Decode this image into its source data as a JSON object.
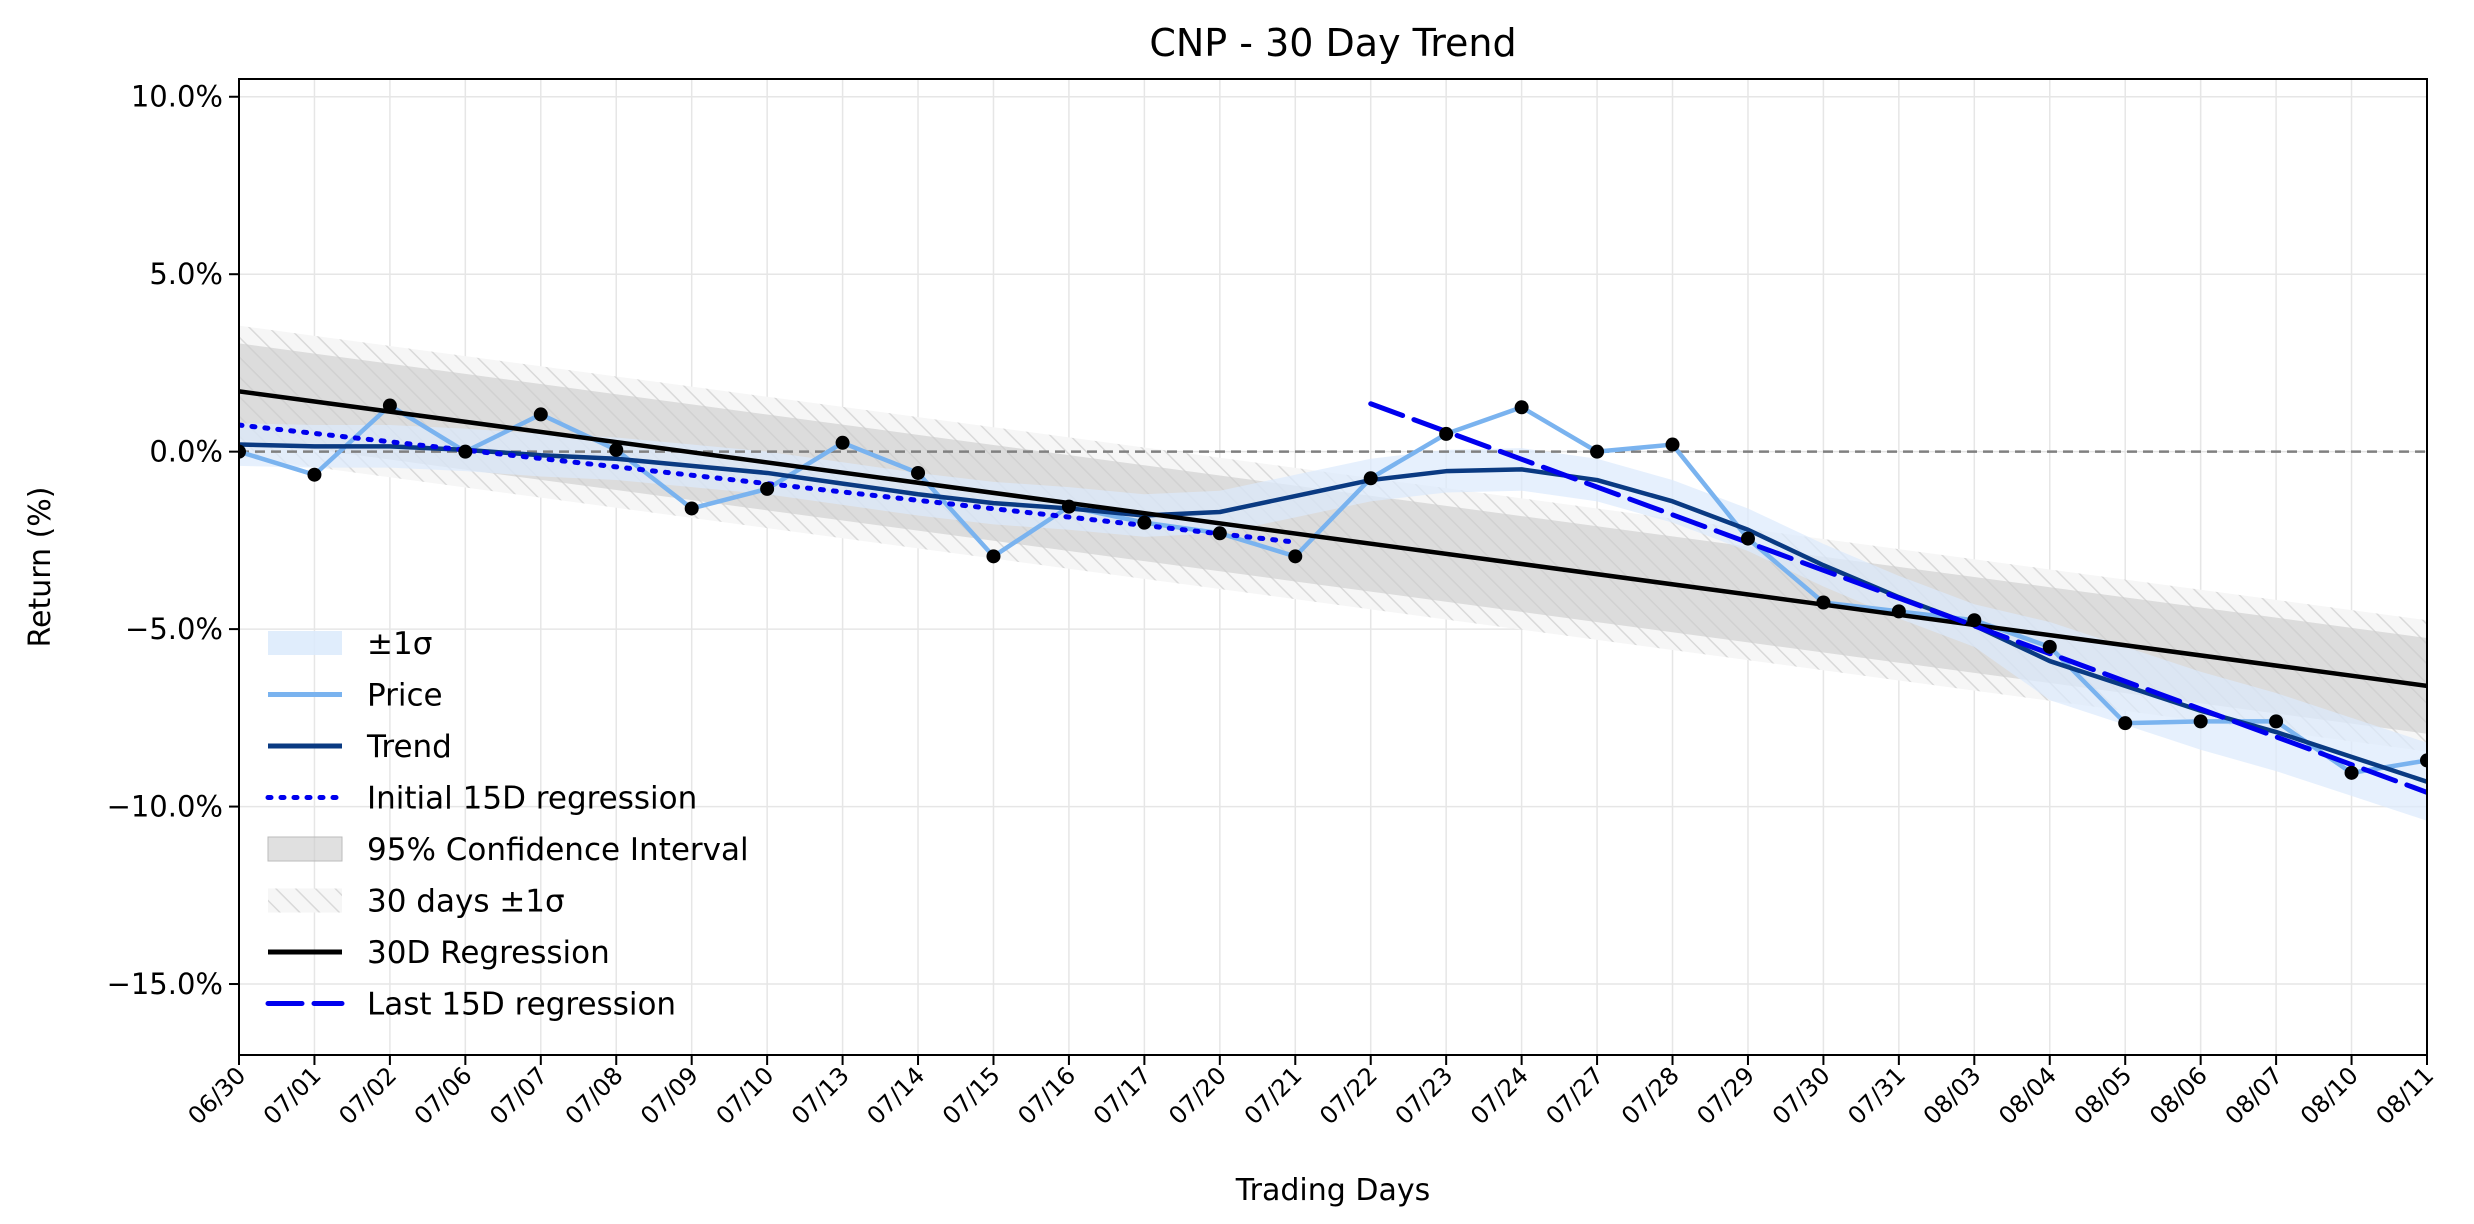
{
  "chart_data": {
    "type": "line",
    "title": "CNP - 30 Day Trend",
    "xlabel": "Trading Days",
    "ylabel": "Return (%)",
    "ylim": [
      -17,
      10.5
    ],
    "yticks": [
      10,
      5,
      0,
      -5,
      -10,
      -15
    ],
    "ytick_labels": [
      "10.0%",
      "5.0%",
      "0.0%",
      "−5.0%",
      "−10.0%",
      "−15.0%"
    ],
    "categories": [
      "06/30",
      "07/01",
      "07/02",
      "07/06",
      "07/07",
      "07/08",
      "07/09",
      "07/10",
      "07/13",
      "07/14",
      "07/15",
      "07/16",
      "07/17",
      "07/20",
      "07/21",
      "07/22",
      "07/23",
      "07/24",
      "07/27",
      "07/28",
      "07/29",
      "07/30",
      "07/31",
      "08/03",
      "08/04",
      "08/05",
      "08/06",
      "08/07",
      "08/10",
      "08/11"
    ],
    "grid": true,
    "legend_position": "lower-left",
    "series": [
      {
        "name": "Price",
        "color": "#7ab3ef",
        "values": [
          0.0,
          -0.65,
          1.3,
          0.0,
          1.05,
          0.05,
          -1.6,
          -1.05,
          0.25,
          -0.6,
          -2.95,
          -1.55,
          -2.0,
          -2.3,
          -2.95,
          -0.75,
          0.5,
          1.25,
          0.0,
          0.2,
          -2.45,
          -4.25,
          -4.5,
          -4.75,
          -5.5,
          -7.65,
          -7.6,
          -7.6,
          -9.05,
          -8.7
        ]
      },
      {
        "name": "Trend",
        "color": "#0a3a82",
        "values": [
          0.2,
          0.15,
          0.15,
          0.05,
          -0.1,
          -0.2,
          -0.4,
          -0.6,
          -0.9,
          -1.2,
          -1.45,
          -1.6,
          -1.8,
          -1.7,
          -1.25,
          -0.8,
          -0.55,
          -0.5,
          -0.8,
          -1.4,
          -2.2,
          -3.2,
          -4.1,
          -4.9,
          -5.9,
          -6.6,
          -7.3,
          -7.9,
          -8.6,
          -9.3
        ]
      },
      {
        "name": "Initial 15D regression",
        "color": "#0000ee",
        "style": "dotted",
        "range": [
          0,
          14
        ],
        "start": 0.75,
        "end": -2.55
      },
      {
        "name": "Last 15D regression",
        "color": "#0000ee",
        "style": "dashed",
        "range": [
          15,
          29
        ],
        "start": 1.35,
        "end": -9.6
      },
      {
        "name": "30D Regression",
        "color": "#000000",
        "style": "solid",
        "range": [
          0,
          29
        ],
        "start": 1.7,
        "end": -6.6
      },
      {
        "name": "±1σ",
        "type": "band",
        "color": "#dbeafc",
        "half_width": [
          0.6,
          0.6,
          0.6,
          0.6,
          0.6,
          0.6,
          0.6,
          0.6,
          0.6,
          0.6,
          0.6,
          0.6,
          0.6,
          0.6,
          0.6,
          0.6,
          0.6,
          0.6,
          0.6,
          0.6,
          0.6,
          0.6,
          0.6,
          0.6,
          1.1,
          1.1,
          1.1,
          1.1,
          1.1,
          1.1
        ]
      },
      {
        "name": "95% Confidence Interval",
        "type": "band",
        "color": "#cccccc",
        "half_width_start": 1.35,
        "half_width_end": 1.35
      },
      {
        "name": "30 days ±1σ",
        "type": "band",
        "color": "#e9e9e9",
        "pattern": "hatch",
        "half_width_start": 1.85,
        "half_width_end": 1.85
      }
    ],
    "reference_line": {
      "y": 0,
      "style": "dashed",
      "color": "#808080"
    }
  }
}
